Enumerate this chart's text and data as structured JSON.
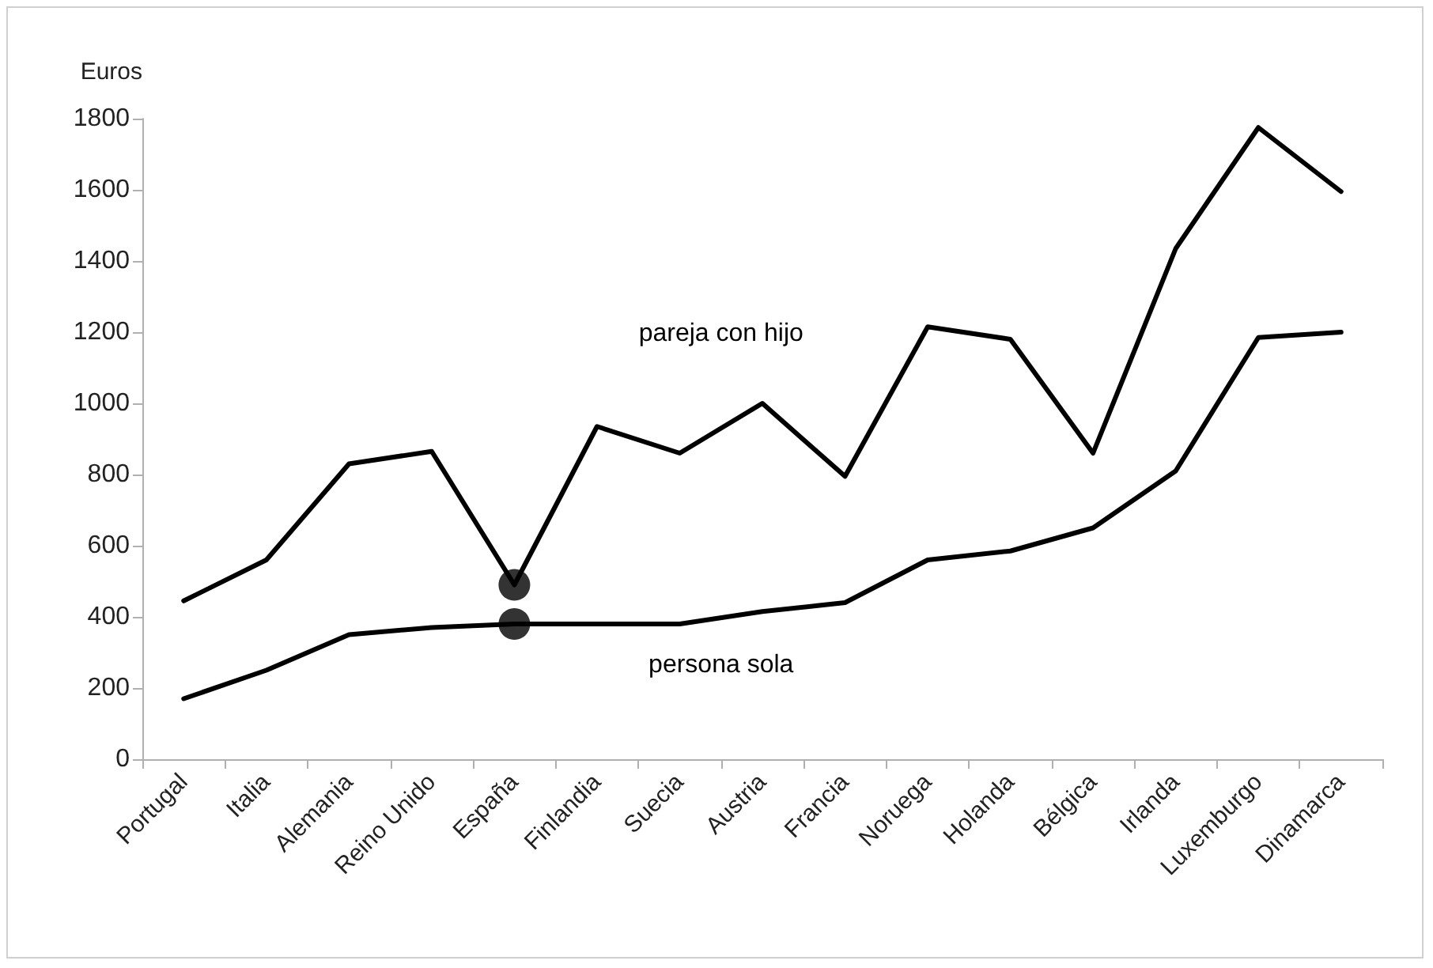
{
  "chart_data": {
    "type": "line",
    "ylabel": "Euros",
    "categories": [
      "Portugal",
      "Italia",
      "Alemania",
      "Reino Unido",
      "España",
      "Finlandia",
      "Suecia",
      "Austria",
      "Francia",
      "Noruega",
      "Holanda",
      "Bélgica",
      "Irlanda",
      "Luxemburgo",
      "Dinamarca"
    ],
    "series": [
      {
        "name": "pareja con hijo",
        "color": "#000000",
        "values": [
          445,
          560,
          830,
          865,
          490,
          935,
          860,
          1000,
          795,
          1215,
          1180,
          860,
          1435,
          1775,
          1595
        ]
      },
      {
        "name": "persona sola",
        "color": "#000000",
        "values": [
          170,
          250,
          350,
          370,
          380,
          380,
          380,
          415,
          440,
          560,
          585,
          650,
          810,
          1185,
          1200
        ]
      },
      {
        "type": "scatter",
        "color": "#000000",
        "marker": "circle",
        "x": [
          "España",
          "España"
        ],
        "values": [
          490,
          380
        ]
      }
    ],
    "ylim": [
      0,
      1800
    ],
    "yticks": [
      0,
      200,
      400,
      600,
      800,
      1000,
      1200,
      1400,
      1600,
      1800
    ],
    "grid": false,
    "legend": false,
    "marker": "none",
    "line_style": "solid"
  }
}
